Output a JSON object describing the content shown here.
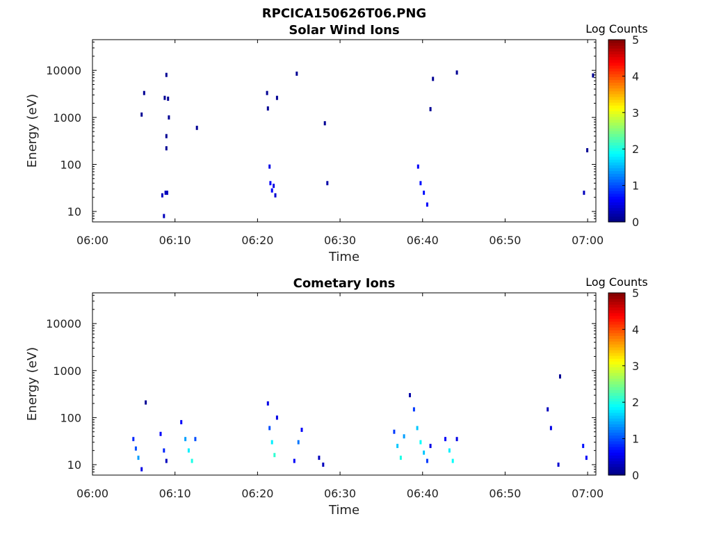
{
  "figure": {
    "title": "RPCICA150626T06.PNG"
  },
  "colorbar": {
    "label": "Log Counts",
    "ticks": [
      "0",
      "1",
      "2",
      "3",
      "4",
      "5"
    ],
    "range": [
      0,
      5
    ],
    "colormap": "jet"
  },
  "chart_data": [
    {
      "type": "heatmap",
      "title": "Solar Wind Ions",
      "xlabel": "Time",
      "ylabel": "Energy (eV)",
      "x_ticks": [
        "06:00",
        "06:10",
        "06:20",
        "06:30",
        "06:40",
        "06:50",
        "07:00"
      ],
      "y_ticks": [
        "10",
        "100",
        "1000",
        "10000"
      ],
      "y_scale": "log",
      "ylim": [
        6,
        45000
      ],
      "xlim": [
        "06:00",
        "07:01"
      ],
      "pixels": [
        {
          "t": "06:06.0",
          "e": 1150,
          "v": 0.1
        },
        {
          "t": "06:06.3",
          "e": 3300,
          "v": 0.1
        },
        {
          "t": "06:08.5",
          "e": 22,
          "v": 0.3
        },
        {
          "t": "06:08.7",
          "e": 8,
          "v": 0.3
        },
        {
          "t": "06:08.9",
          "e": 25,
          "v": 0.3
        },
        {
          "t": "06:09.1",
          "e": 25,
          "v": 0.3
        },
        {
          "t": "06:09.0",
          "e": 8000,
          "v": 0.1
        },
        {
          "t": "06:08.8",
          "e": 2600,
          "v": 0.1
        },
        {
          "t": "06:09.2",
          "e": 2500,
          "v": 0.1
        },
        {
          "t": "06:09.3",
          "e": 1000,
          "v": 0.1
        },
        {
          "t": "06:09.0",
          "e": 400,
          "v": 0.1
        },
        {
          "t": "06:09.0",
          "e": 220,
          "v": 0.1
        },
        {
          "t": "06:12.7",
          "e": 600,
          "v": 0.1
        },
        {
          "t": "06:21.2",
          "e": 3300,
          "v": 0.1
        },
        {
          "t": "06:21.3",
          "e": 1550,
          "v": 0.1
        },
        {
          "t": "06:21.5",
          "e": 90,
          "v": 0.5
        },
        {
          "t": "06:21.6",
          "e": 40,
          "v": 0.6
        },
        {
          "t": "06:21.8",
          "e": 28,
          "v": 0.6
        },
        {
          "t": "06:22.0",
          "e": 35,
          "v": 0.5
        },
        {
          "t": "06:22.2",
          "e": 22,
          "v": 0.4
        },
        {
          "t": "06:22.4",
          "e": 2600,
          "v": 0.1
        },
        {
          "t": "06:24.8",
          "e": 8500,
          "v": 0.1
        },
        {
          "t": "06:28.2",
          "e": 750,
          "v": 0.1
        },
        {
          "t": "06:28.5",
          "e": 40,
          "v": 0.2
        },
        {
          "t": "06:39.5",
          "e": 90,
          "v": 0.6
        },
        {
          "t": "06:39.8",
          "e": 40,
          "v": 0.7
        },
        {
          "t": "06:40.2",
          "e": 25,
          "v": 0.7
        },
        {
          "t": "06:40.6",
          "e": 14,
          "v": 0.6
        },
        {
          "t": "06:41.0",
          "e": 1500,
          "v": 0.1
        },
        {
          "t": "06:41.3",
          "e": 6600,
          "v": 0.1
        },
        {
          "t": "06:44.2",
          "e": 9000,
          "v": 0.1
        },
        {
          "t": "06:59.6",
          "e": 25,
          "v": 0.3
        },
        {
          "t": "07:00.0",
          "e": 200,
          "v": 0.1
        },
        {
          "t": "07:00.7",
          "e": 7800,
          "v": 0.1
        }
      ]
    },
    {
      "type": "heatmap",
      "title": "Cometary Ions",
      "xlabel": "Time",
      "ylabel": "Energy (eV)",
      "x_ticks": [
        "06:00",
        "06:10",
        "06:20",
        "06:30",
        "06:40",
        "06:50",
        "07:00"
      ],
      "y_ticks": [
        "10",
        "100",
        "1000",
        "10000"
      ],
      "y_scale": "log",
      "ylim": [
        6,
        45000
      ],
      "xlim": [
        "06:00",
        "07:01"
      ],
      "pixels": [
        {
          "t": "06:05.0",
          "e": 35,
          "v": 0.8
        },
        {
          "t": "06:05.3",
          "e": 22,
          "v": 1.0
        },
        {
          "t": "06:05.6",
          "e": 14,
          "v": 1.4
        },
        {
          "t": "06:06.0",
          "e": 8,
          "v": 0.5
        },
        {
          "t": "06:06.5",
          "e": 210,
          "v": 0.1
        },
        {
          "t": "06:08.3",
          "e": 45,
          "v": 0.6
        },
        {
          "t": "06:08.7",
          "e": 20,
          "v": 0.8
        },
        {
          "t": "06:09.0",
          "e": 12,
          "v": 0.3
        },
        {
          "t": "06:10.8",
          "e": 80,
          "v": 0.6
        },
        {
          "t": "06:11.3",
          "e": 35,
          "v": 1.4
        },
        {
          "t": "06:11.7",
          "e": 20,
          "v": 1.8
        },
        {
          "t": "06:12.1",
          "e": 12,
          "v": 2.0
        },
        {
          "t": "06:12.5",
          "e": 35,
          "v": 1.0
        },
        {
          "t": "06:21.3",
          "e": 200,
          "v": 0.5
        },
        {
          "t": "06:21.5",
          "e": 60,
          "v": 1.0
        },
        {
          "t": "06:21.8",
          "e": 30,
          "v": 1.8
        },
        {
          "t": "06:22.1",
          "e": 16,
          "v": 2.1
        },
        {
          "t": "06:22.4",
          "e": 100,
          "v": 0.5
        },
        {
          "t": "06:24.5",
          "e": 12,
          "v": 0.6
        },
        {
          "t": "06:25.0",
          "e": 30,
          "v": 1.2
        },
        {
          "t": "06:25.4",
          "e": 55,
          "v": 0.6
        },
        {
          "t": "06:27.5",
          "e": 14,
          "v": 0.3
        },
        {
          "t": "06:28.0",
          "e": 10,
          "v": 0.3
        },
        {
          "t": "06:36.6",
          "e": 50,
          "v": 0.9
        },
        {
          "t": "06:37.0",
          "e": 25,
          "v": 1.6
        },
        {
          "t": "06:37.4",
          "e": 14,
          "v": 2.0
        },
        {
          "t": "06:37.8",
          "e": 40,
          "v": 1.4
        },
        {
          "t": "06:38.5",
          "e": 300,
          "v": 0.2
        },
        {
          "t": "06:39.0",
          "e": 150,
          "v": 0.9
        },
        {
          "t": "06:39.4",
          "e": 60,
          "v": 1.6
        },
        {
          "t": "06:39.8",
          "e": 30,
          "v": 1.9
        },
        {
          "t": "06:40.2",
          "e": 18,
          "v": 1.6
        },
        {
          "t": "06:40.6",
          "e": 12,
          "v": 0.9
        },
        {
          "t": "06:41.0",
          "e": 25,
          "v": 0.5
        },
        {
          "t": "06:42.8",
          "e": 35,
          "v": 0.6
        },
        {
          "t": "06:43.3",
          "e": 20,
          "v": 1.8
        },
        {
          "t": "06:43.7",
          "e": 12,
          "v": 1.9
        },
        {
          "t": "06:44.2",
          "e": 35,
          "v": 0.5
        },
        {
          "t": "06:55.2",
          "e": 150,
          "v": 0.3
        },
        {
          "t": "06:55.6",
          "e": 60,
          "v": 0.5
        },
        {
          "t": "06:56.5",
          "e": 10,
          "v": 0.4
        },
        {
          "t": "06:56.7",
          "e": 750,
          "v": 0.1
        },
        {
          "t": "06:59.5",
          "e": 25,
          "v": 0.7
        },
        {
          "t": "06:59.9",
          "e": 14,
          "v": 0.6
        }
      ]
    }
  ]
}
